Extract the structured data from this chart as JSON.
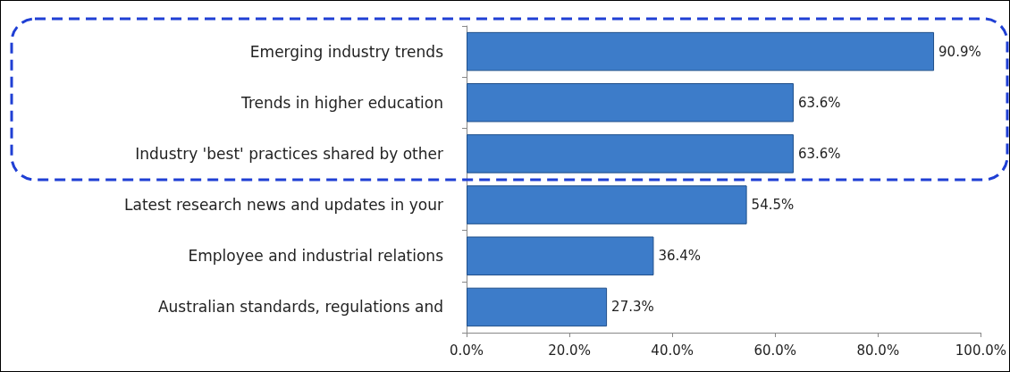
{
  "chart_data": {
    "type": "bar",
    "orientation": "horizontal",
    "categories": [
      "Emerging industry trends",
      "Trends in higher education",
      "Industry 'best' practices shared by other",
      "Latest research news and updates in your",
      "Employee and industrial relations",
      "Australian standards, regulations and"
    ],
    "values": [
      90.9,
      63.6,
      63.6,
      54.5,
      36.4,
      27.3
    ],
    "value_labels": [
      "90.9%",
      "63.6%",
      "63.6%",
      "54.5%",
      "36.4%",
      "27.3%"
    ],
    "color": "#3d7cc9",
    "xlim": [
      0,
      100
    ],
    "xticks": [
      {
        "value": 0,
        "label": "0.0%"
      },
      {
        "value": 20,
        "label": "20.0%"
      },
      {
        "value": 40,
        "label": "40.0%"
      },
      {
        "value": 60,
        "label": "60.0%"
      },
      {
        "value": 80,
        "label": "80.0%"
      },
      {
        "value": 100,
        "label": "100.0%"
      }
    ],
    "grid": false
  }
}
